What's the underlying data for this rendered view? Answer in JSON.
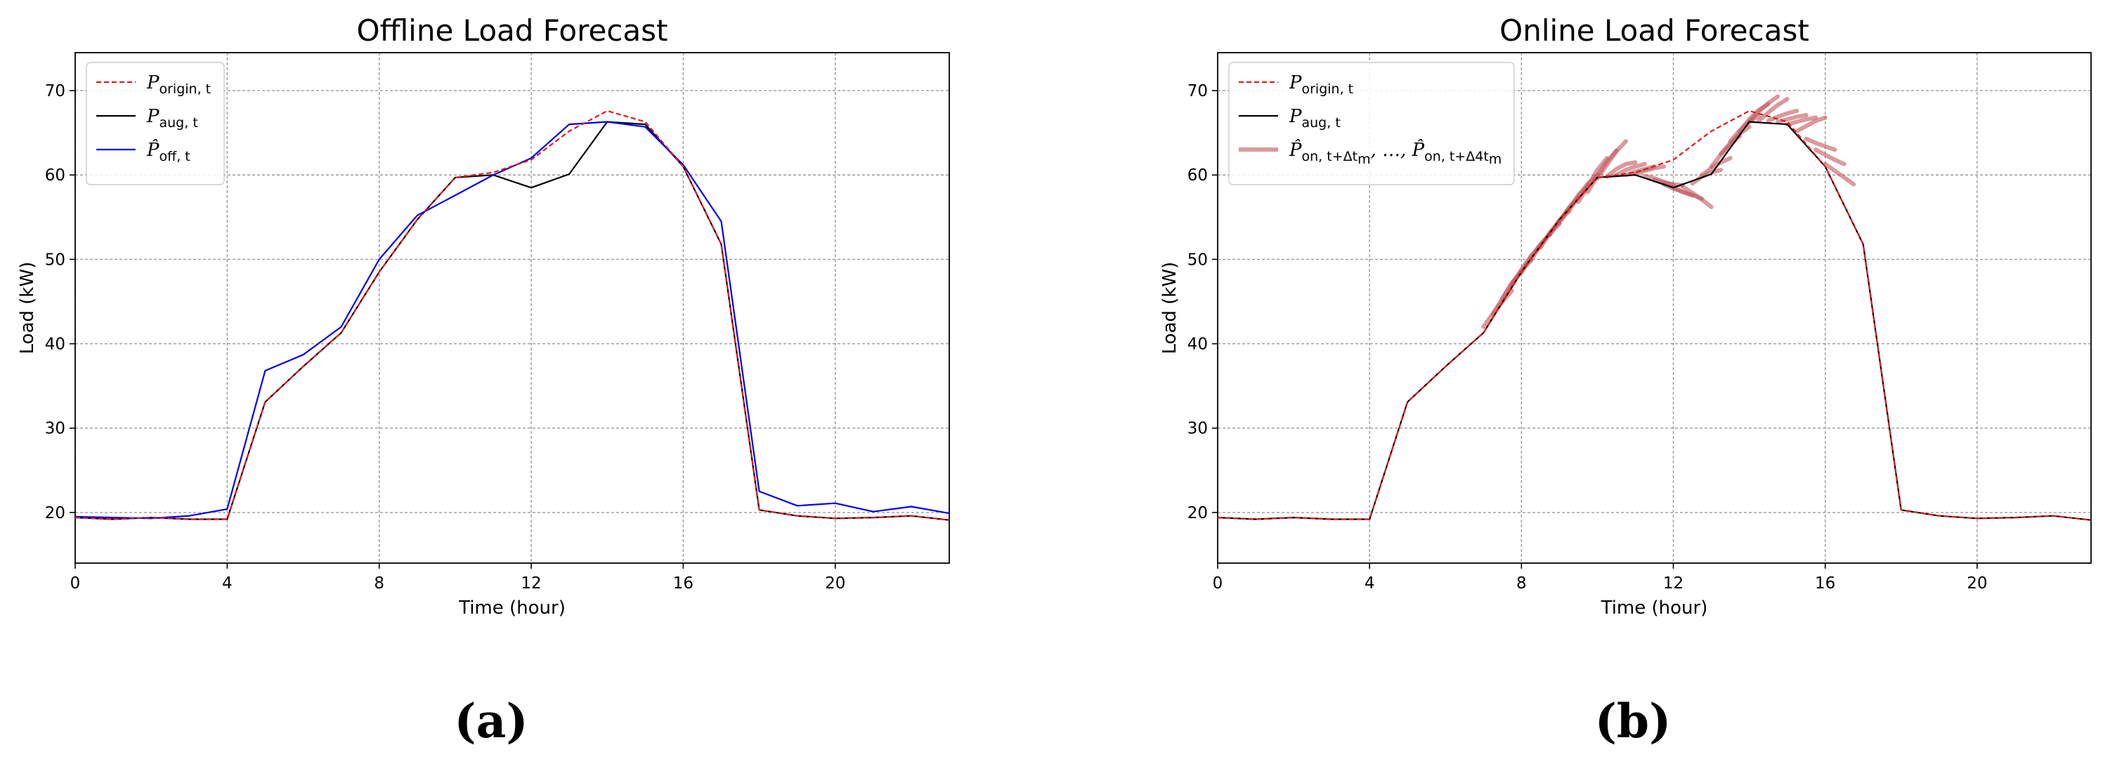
{
  "chart_data": [
    {
      "type": "line",
      "title": "Offline Load Forecast",
      "xlabel": "Time (hour)",
      "ylabel": "Load (kW)",
      "xlim": [
        0,
        23
      ],
      "ylim": [
        14,
        74.5
      ],
      "xticks": [
        0,
        4,
        8,
        12,
        16,
        20
      ],
      "yticks": [
        20,
        30,
        40,
        50,
        60,
        70
      ],
      "grid": true,
      "legend_position": "top-left",
      "panel_label": "(a)",
      "series": [
        {
          "name": "P_origin,t",
          "legend_main": "P",
          "legend_sub": "origin, t",
          "color": "#e31a1c",
          "style": "dashed",
          "x": [
            0,
            1,
            2,
            3,
            4,
            5,
            6,
            7,
            8,
            9,
            10,
            11,
            12,
            13,
            14,
            15,
            16,
            17,
            18,
            19,
            20,
            21,
            22,
            23
          ],
          "y": [
            19.4,
            19.2,
            19.4,
            19.2,
            19.2,
            33.1,
            37.3,
            41.3,
            48.5,
            54.7,
            59.7,
            60.3,
            61.8,
            65.2,
            67.6,
            66.3,
            61.0,
            51.8,
            20.3,
            19.6,
            19.3,
            19.4,
            19.6,
            19.1
          ]
        },
        {
          "name": "P_aug,t",
          "legend_main": "P",
          "legend_sub": "aug, t",
          "color": "#000000",
          "style": "solid",
          "x": [
            0,
            1,
            2,
            3,
            4,
            5,
            6,
            7,
            8,
            9,
            10,
            11,
            12,
            13,
            14,
            15,
            16,
            17,
            18,
            19,
            20,
            21,
            22,
            23
          ],
          "y": [
            19.4,
            19.2,
            19.4,
            19.2,
            19.2,
            33.1,
            37.3,
            41.3,
            48.5,
            54.7,
            59.7,
            60.0,
            58.5,
            60.1,
            66.3,
            66.0,
            61.0,
            51.8,
            20.3,
            19.6,
            19.3,
            19.4,
            19.6,
            19.1
          ]
        },
        {
          "name": "P̂_off,t",
          "legend_main": "P̂",
          "legend_sub": "off, t",
          "color": "#0000ee",
          "style": "solid",
          "x": [
            0,
            1,
            2,
            3,
            4,
            5,
            6,
            7,
            8,
            9,
            10,
            11,
            12,
            13,
            14,
            15,
            16,
            17,
            18,
            19,
            20,
            21,
            22,
            23
          ],
          "y": [
            19.5,
            19.4,
            19.3,
            19.6,
            20.4,
            36.8,
            38.7,
            42.0,
            50.0,
            55.2,
            57.6,
            60.0,
            62.0,
            66.0,
            66.3,
            65.7,
            61.2,
            54.5,
            22.5,
            20.8,
            21.1,
            20.1,
            20.7,
            19.9
          ]
        }
      ]
    },
    {
      "type": "line",
      "title": "Online Load Forecast",
      "xlabel": "Time (hour)",
      "ylabel": "Load (kW)",
      "xlim": [
        0,
        23
      ],
      "ylim": [
        14,
        74.5
      ],
      "xticks": [
        0,
        4,
        8,
        12,
        16,
        20
      ],
      "yticks": [
        20,
        30,
        40,
        50,
        60,
        70
      ],
      "grid": true,
      "legend_position": "top-left",
      "panel_label": "(b)",
      "series": [
        {
          "name": "P_origin,t",
          "legend_main": "P",
          "legend_sub": "origin, t",
          "color": "#e31a1c",
          "style": "dashed",
          "x": [
            0,
            1,
            2,
            3,
            4,
            5,
            6,
            7,
            8,
            9,
            10,
            11,
            12,
            13,
            14,
            15,
            16,
            17,
            18,
            19,
            20,
            21,
            22,
            23
          ],
          "y": [
            19.4,
            19.2,
            19.4,
            19.2,
            19.2,
            33.1,
            37.3,
            41.3,
            48.5,
            54.7,
            59.7,
            60.3,
            61.8,
            65.2,
            67.6,
            66.3,
            61.0,
            51.8,
            20.3,
            19.6,
            19.3,
            19.4,
            19.6,
            19.1
          ]
        },
        {
          "name": "P_aug,t",
          "legend_main": "P",
          "legend_sub": "aug, t",
          "color": "#000000",
          "style": "solid",
          "x": [
            0,
            1,
            2,
            3,
            4,
            5,
            6,
            7,
            8,
            9,
            10,
            11,
            12,
            13,
            14,
            15,
            16,
            17,
            18,
            19,
            20,
            21,
            22,
            23
          ],
          "y": [
            19.4,
            19.2,
            19.4,
            19.2,
            19.2,
            33.1,
            37.3,
            41.3,
            48.5,
            54.7,
            59.7,
            60.0,
            58.5,
            60.1,
            66.3,
            66.0,
            61.0,
            51.8,
            20.3,
            19.6,
            19.3,
            19.4,
            19.6,
            19.1
          ]
        }
      ],
      "forecast_fans": {
        "legend_main": "P̂",
        "legend_sub1": "on, t+Δt",
        "legend_sub1b": "m",
        "legend_mid": ", …, ",
        "legend_sub2": "on, t+Δ4t",
        "legend_sub2b": "m",
        "color": "#c0565c",
        "segments": [
          {
            "x": [
              7.0,
              7.25,
              7.5,
              7.75
            ],
            "y": [
              42.0,
              43.6,
              45.0,
              46.3
            ]
          },
          {
            "x": [
              7.25,
              7.5,
              7.75,
              8.0
            ],
            "y": [
              43.5,
              45.4,
              47.2,
              48.6
            ]
          },
          {
            "x": [
              7.5,
              7.75,
              8.0,
              8.25
            ],
            "y": [
              45.3,
              47.2,
              48.6,
              49.9
            ]
          },
          {
            "x": [
              7.75,
              8.0,
              8.25,
              8.5
            ],
            "y": [
              46.9,
              48.8,
              50.4,
              51.6
            ]
          },
          {
            "x": [
              8.0,
              8.25,
              8.5,
              8.75
            ],
            "y": [
              48.4,
              50.3,
              51.8,
              53.0
            ]
          },
          {
            "x": [
              8.25,
              8.5,
              8.75,
              9.0
            ],
            "y": [
              49.9,
              51.7,
              53.1,
              54.2
            ]
          },
          {
            "x": [
              8.5,
              8.75,
              9.0,
              9.25
            ],
            "y": [
              51.4,
              53.2,
              54.6,
              55.7
            ]
          },
          {
            "x": [
              8.75,
              9.0,
              9.25,
              9.5
            ],
            "y": [
              52.9,
              54.6,
              56.1,
              57.3
            ]
          },
          {
            "x": [
              9.0,
              9.25,
              9.5,
              9.75
            ],
            "y": [
              54.3,
              56.1,
              57.6,
              58.8
            ]
          },
          {
            "x": [
              9.25,
              9.5,
              9.75,
              10.0
            ],
            "y": [
              55.7,
              57.5,
              59.0,
              60.0
            ]
          },
          {
            "x": [
              9.5,
              9.75,
              10.0,
              10.25
            ],
            "y": [
              56.8,
              58.7,
              60.6,
              62.0
            ]
          },
          {
            "x": [
              9.75,
              10.0,
              10.25,
              10.5
            ],
            "y": [
              58.0,
              59.9,
              61.6,
              62.9
            ]
          },
          {
            "x": [
              10.0,
              10.25,
              10.5,
              10.75
            ],
            "y": [
              59.6,
              61.2,
              62.8,
              64.0
            ]
          },
          {
            "x": [
              10.25,
              10.5,
              10.75,
              11.0
            ],
            "y": [
              59.8,
              60.7,
              61.3,
              61.5
            ]
          },
          {
            "x": [
              10.5,
              10.75,
              11.0,
              11.25
            ],
            "y": [
              60.0,
              60.6,
              61.0,
              61.3
            ]
          },
          {
            "x": [
              10.75,
              11.0,
              11.25,
              11.5
            ],
            "y": [
              60.0,
              60.4,
              60.7,
              61.0
            ]
          },
          {
            "x": [
              11.0,
              11.25,
              11.5,
              11.75
            ],
            "y": [
              60.1,
              60.5,
              60.8,
              61.0
            ]
          },
          {
            "x": [
              11.25,
              11.5,
              11.75,
              12.0
            ],
            "y": [
              59.9,
              59.6,
              59.2,
              58.8
            ]
          },
          {
            "x": [
              11.5,
              11.75,
              12.0,
              12.25
            ],
            "y": [
              59.4,
              59.1,
              58.9,
              58.8
            ]
          },
          {
            "x": [
              11.75,
              12.0,
              12.25,
              12.5
            ],
            "y": [
              58.9,
              58.4,
              58.0,
              57.6
            ]
          },
          {
            "x": [
              12.0,
              12.25,
              12.5,
              12.75
            ],
            "y": [
              58.5,
              58.0,
              57.6,
              57.2
            ]
          },
          {
            "x": [
              12.25,
              12.5,
              12.75,
              13.0
            ],
            "y": [
              58.6,
              57.9,
              57.1,
              56.2
            ]
          },
          {
            "x": [
              12.5,
              12.75,
              13.0,
              13.25
            ],
            "y": [
              59.0,
              59.8,
              60.3,
              60.6
            ]
          },
          {
            "x": [
              12.75,
              13.0,
              13.25,
              13.5
            ],
            "y": [
              60.0,
              60.8,
              61.5,
              62.0
            ]
          },
          {
            "x": [
              13.0,
              13.25,
              13.5,
              13.75
            ],
            "y": [
              61.0,
              62.4,
              63.6,
              64.6
            ]
          },
          {
            "x": [
              13.25,
              13.5,
              13.75,
              14.0
            ],
            "y": [
              62.5,
              63.8,
              64.9,
              65.7
            ]
          },
          {
            "x": [
              13.5,
              13.75,
              14.0,
              14.25
            ],
            "y": [
              64.0,
              65.3,
              66.3,
              67.0
            ]
          },
          {
            "x": [
              13.75,
              14.0,
              14.25,
              14.5
            ],
            "y": [
              65.2,
              66.6,
              67.7,
              68.4
            ]
          },
          {
            "x": [
              14.0,
              14.25,
              14.5,
              14.75
            ],
            "y": [
              66.3,
              67.5,
              68.5,
              69.3
            ]
          },
          {
            "x": [
              14.25,
              14.5,
              14.75,
              15.0
            ],
            "y": [
              66.4,
              67.4,
              68.3,
              69.0
            ]
          },
          {
            "x": [
              14.5,
              14.75,
              15.0,
              15.25
            ],
            "y": [
              66.4,
              66.9,
              67.3,
              67.6
            ]
          },
          {
            "x": [
              14.75,
              15.0,
              15.25,
              15.5
            ],
            "y": [
              66.3,
              66.6,
              66.9,
              67.1
            ]
          },
          {
            "x": [
              15.0,
              15.25,
              15.5,
              15.75
            ],
            "y": [
              66.0,
              66.3,
              66.6,
              66.8
            ]
          },
          {
            "x": [
              15.25,
              15.5,
              15.75,
              16.0
            ],
            "y": [
              65.2,
              65.8,
              66.4,
              66.8
            ]
          },
          {
            "x": [
              15.5,
              15.75,
              16.0,
              16.25
            ],
            "y": [
              64.3,
              63.8,
              63.4,
              63.0
            ]
          },
          {
            "x": [
              15.75,
              16.0,
              16.25,
              16.5
            ],
            "y": [
              63.0,
              62.4,
              61.8,
              61.3
            ]
          },
          {
            "x": [
              16.0,
              16.25,
              16.5,
              16.75
            ],
            "y": [
              61.3,
              60.5,
              59.7,
              58.9
            ]
          }
        ]
      }
    }
  ]
}
